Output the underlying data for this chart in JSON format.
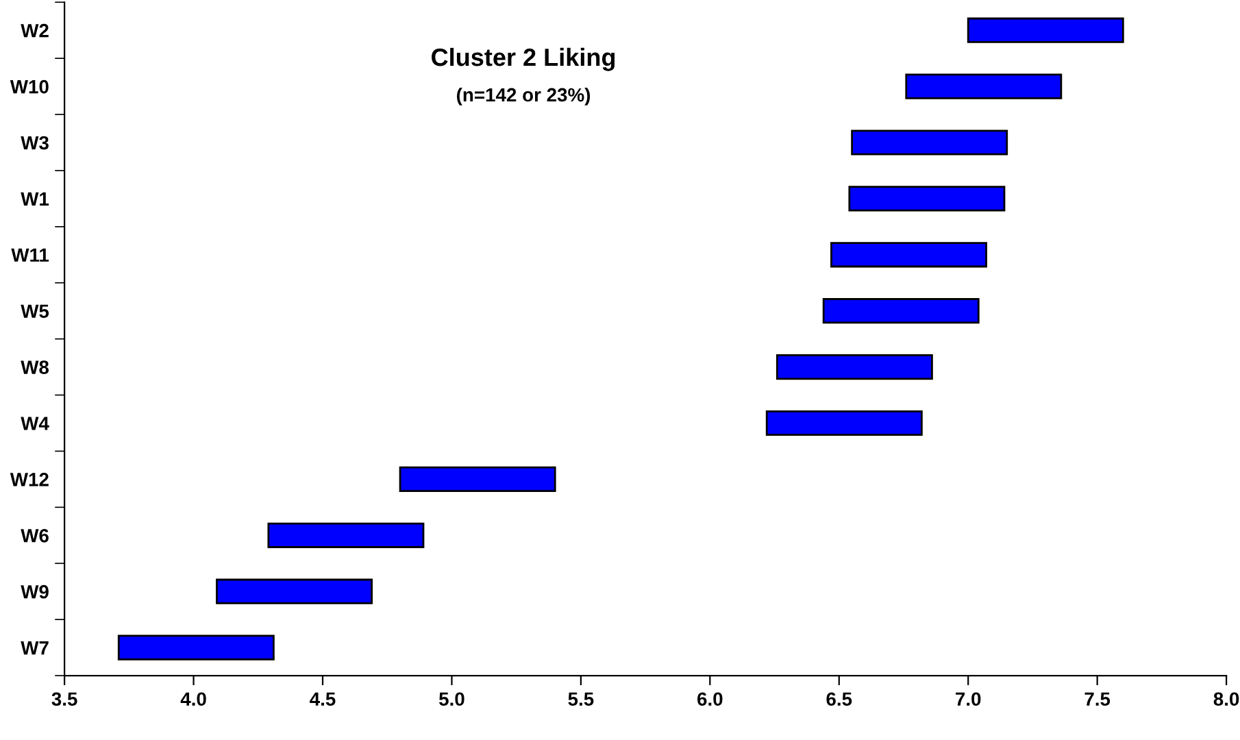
{
  "chart_data": {
    "type": "bar",
    "orientation": "horizontal",
    "title": "Cluster 2 Liking",
    "subtitle": "(n=142 or 23%)",
    "categories": [
      "W2",
      "W10",
      "W3",
      "W1",
      "W11",
      "W5",
      "W8",
      "W4",
      "W12",
      "W6",
      "W9",
      "W7"
    ],
    "base": [
      7.0,
      6.76,
      6.55,
      6.54,
      6.47,
      6.44,
      6.26,
      6.22,
      4.8,
      4.29,
      4.09,
      3.71
    ],
    "values": [
      0.6,
      0.6,
      0.6,
      0.6,
      0.6,
      0.6,
      0.6,
      0.6,
      0.6,
      0.6,
      0.6,
      0.6
    ],
    "color": "#0000ff",
    "xlim": [
      3.5,
      8.0
    ],
    "xticks": [
      {
        "value": 3.5,
        "label": "3.5"
      },
      {
        "value": 4.0,
        "label": "4.0"
      },
      {
        "value": 4.5,
        "label": "4.5"
      },
      {
        "value": 5.0,
        "label": "5.0"
      },
      {
        "value": 5.5,
        "label": "5.5"
      },
      {
        "value": 6.0,
        "label": "6.0"
      },
      {
        "value": 6.5,
        "label": "6.5"
      },
      {
        "value": 7.0,
        "label": "7.0"
      },
      {
        "value": 7.5,
        "label": "7.5"
      },
      {
        "value": 8.0,
        "label": "8.0"
      }
    ],
    "grid": false
  }
}
